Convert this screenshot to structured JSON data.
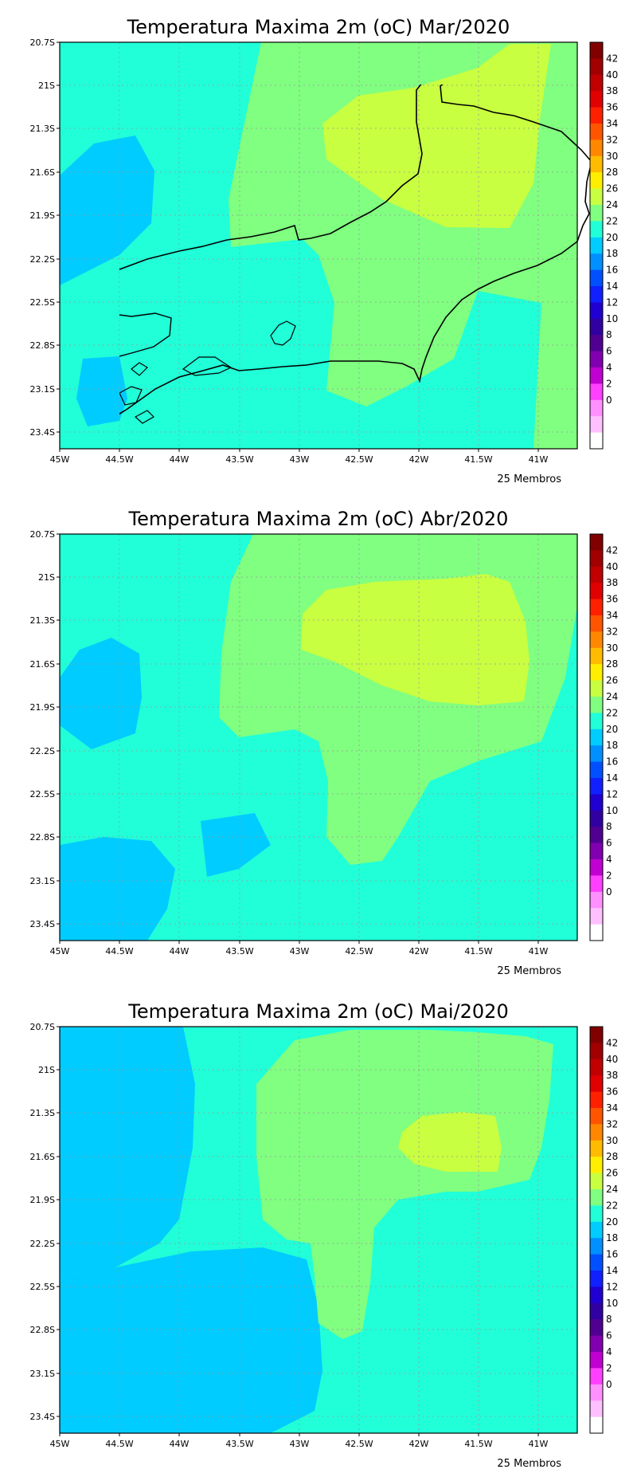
{
  "panels": [
    {
      "title": "Temperatura Maxima 2m (oC) Mar/2020",
      "footer": "25 Membros"
    },
    {
      "title": "Temperatura Maxima 2m (oC) Abr/2020",
      "footer": "25 Membros"
    },
    {
      "title": "Temperatura Maxima 2m (oC) Mai/2020",
      "footer": "25 Membros"
    }
  ],
  "axes": {
    "lat_ticks": [
      "20.7S",
      "21S",
      "21.3S",
      "21.6S",
      "21.9S",
      "22.2S",
      "22.5S",
      "22.8S",
      "23.1S",
      "23.4S"
    ],
    "lon_ticks": [
      "45W",
      "44.5W",
      "44W",
      "43.5W",
      "43W",
      "42.5W",
      "42W",
      "41.5W",
      "41W"
    ]
  },
  "colorbar": {
    "labels": [
      "42",
      "40",
      "38",
      "36",
      "34",
      "32",
      "30",
      "28",
      "26",
      "24",
      "22",
      "20",
      "18",
      "16",
      "14",
      "12",
      "10",
      "8",
      "6",
      "4",
      "2",
      "0"
    ],
    "colors": [
      "#800000",
      "#a00000",
      "#c00000",
      "#e00000",
      "#ff2000",
      "#ff5500",
      "#ff8800",
      "#ffbb00",
      "#ffee00",
      "#c8ff40",
      "#80ff80",
      "#20ffd8",
      "#00ccff",
      "#0090ff",
      "#0050ff",
      "#1020ff",
      "#2000d0",
      "#3000a0",
      "#500090",
      "#8000b0",
      "#c000d0",
      "#ff40ff",
      "#ff90ff",
      "#ffc0ff",
      "#ffffff"
    ]
  },
  "legend_colors": {
    "c22_24": "#00ccff",
    "c24_26": "#20ffd8",
    "c26_28": "#80ff80",
    "c28_30": "#c8ff40"
  }
}
